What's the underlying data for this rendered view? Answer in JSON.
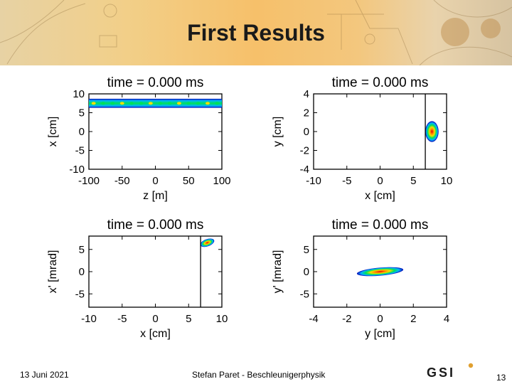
{
  "slide": {
    "title": "First Results",
    "footer": {
      "date": "13 Juni 2021",
      "author": "Stefan Paret - Beschleunigerphysik",
      "page": "13"
    },
    "logo_text": "GSI"
  },
  "chart_data": [
    {
      "type": "heatmap",
      "title": "time = 0.000 ms",
      "xlabel": "z [m]",
      "ylabel": "x [cm]",
      "xlim": [
        -100,
        100
      ],
      "ylim": [
        -10,
        10
      ],
      "xticks": [
        -100,
        -50,
        0,
        50,
        100
      ],
      "yticks": [
        10,
        5,
        0,
        -5,
        -10
      ],
      "distribution": {
        "shape": "band",
        "x_range": [
          -100,
          100
        ],
        "y_center": 7.5,
        "y_halfwidth": 1.2
      }
    },
    {
      "type": "heatmap",
      "title": "time = 0.000 ms",
      "xlabel": "x [cm]",
      "ylabel": "y [cm]",
      "xlim": [
        -10,
        10
      ],
      "ylim": [
        -4,
        4
      ],
      "xticks": [
        -10,
        -5,
        0,
        5,
        10
      ],
      "yticks": [
        4,
        2,
        0,
        -2,
        -4
      ],
      "vline": 6.8,
      "distribution": {
        "shape": "ellipse",
        "center": [
          7.8,
          0
        ],
        "semi_axes": [
          1.0,
          1.1
        ]
      }
    },
    {
      "type": "heatmap",
      "title": "time = 0.000 ms",
      "xlabel": "x [cm]",
      "ylabel": "x' [mrad]",
      "xlim": [
        -10,
        10
      ],
      "ylim": [
        -8,
        8
      ],
      "xticks": [
        -10,
        -5,
        0,
        5,
        10
      ],
      "yticks": [
        5,
        0,
        -5
      ],
      "vline": 6.8,
      "distribution": {
        "shape": "ellipse",
        "center": [
          7.8,
          6.5
        ],
        "semi_axes": [
          1.1,
          0.8
        ],
        "angle": -20
      }
    },
    {
      "type": "heatmap",
      "title": "time = 0.000 ms",
      "xlabel": "y [cm]",
      "ylabel": "y' [mrad]",
      "xlim": [
        -4,
        4
      ],
      "ylim": [
        -8,
        8
      ],
      "xticks": [
        -4,
        -2,
        0,
        2,
        4
      ],
      "yticks": [
        5,
        0,
        -5
      ],
      "distribution": {
        "shape": "ellipse",
        "center": [
          0,
          0
        ],
        "semi_axes": [
          1.4,
          0.9
        ],
        "angle": -5
      }
    }
  ],
  "colormap": [
    "#0000b4",
    "#00b4ff",
    "#00e05a",
    "#f0e000",
    "#ff8000",
    "#e00000"
  ]
}
